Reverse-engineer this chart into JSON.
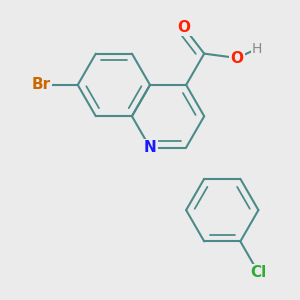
{
  "background_color": "#ebebeb",
  "bond_color": "#4a8a8a",
  "bond_width": 1.5,
  "atoms": {
    "N": {
      "color": "#1a1aff",
      "fontsize": 11,
      "fontweight": "bold"
    },
    "O": {
      "color": "#ff2200",
      "fontsize": 11,
      "fontweight": "bold"
    },
    "H": {
      "color": "#888888",
      "fontsize": 10,
      "fontweight": "normal"
    },
    "Br": {
      "color": "#cc6600",
      "fontsize": 11,
      "fontweight": "bold"
    },
    "Cl": {
      "color": "#33aa33",
      "fontsize": 11,
      "fontweight": "bold"
    }
  },
  "figsize": [
    3.0,
    3.0
  ],
  "dpi": 100
}
